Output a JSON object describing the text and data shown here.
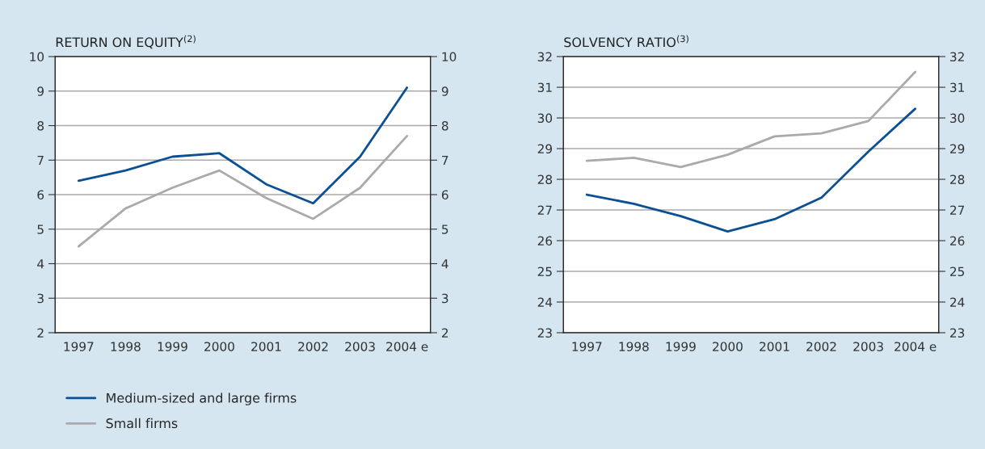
{
  "chart_data": [
    {
      "type": "line",
      "title": "RETURN ON EQUITY$^{(2)}$",
      "categories": [
        "1997",
        "1998",
        "1999",
        "2000",
        "2001",
        "2002",
        "2003",
        "2004 e"
      ],
      "series": [
        {
          "name": "Medium-sized and large firms",
          "color": "#0b4f94",
          "values": [
            6.4,
            6.7,
            7.1,
            7.2,
            6.3,
            5.75,
            7.1,
            9.1
          ]
        },
        {
          "name": "Small firms",
          "color": "#aaaaaa",
          "values": [
            4.5,
            5.6,
            6.2,
            6.7,
            5.9,
            5.3,
            6.2,
            7.7
          ]
        }
      ],
      "ylim": [
        2,
        10
      ],
      "yticks": [
        2,
        3,
        4,
        5,
        6,
        7,
        8,
        9,
        10
      ],
      "y2lim": [
        2,
        10
      ],
      "y2ticks": [
        2,
        3,
        4,
        5,
        6,
        7,
        8,
        9,
        10
      ],
      "grid": "y",
      "legend": "bottom left"
    },
    {
      "type": "line",
      "title": "SOLVENCY RATIO$^{(3)}$",
      "categories": [
        "1997",
        "1998",
        "1999",
        "2000",
        "2001",
        "2002",
        "2003",
        "2004 e"
      ],
      "series": [
        {
          "color": "#0b4f94",
          "values": [
            27.5,
            27.2,
            26.8,
            26.3,
            26.7,
            27.4,
            28.9,
            30.3
          ]
        },
        {
          "color": "#aaaaaa",
          "values": [
            28.6,
            28.7,
            28.4,
            28.8,
            29.4,
            29.5,
            29.9,
            31.5
          ]
        }
      ],
      "ylim": [
        23,
        32
      ],
      "yticks": [
        23,
        24,
        25,
        26,
        27,
        28,
        29,
        30,
        31,
        32
      ],
      "y2lim": [
        23,
        32
      ],
      "y2ticks": [
        23,
        24,
        25,
        26,
        27,
        28,
        29,
        30,
        31,
        32
      ],
      "grid": "y"
    }
  ]
}
